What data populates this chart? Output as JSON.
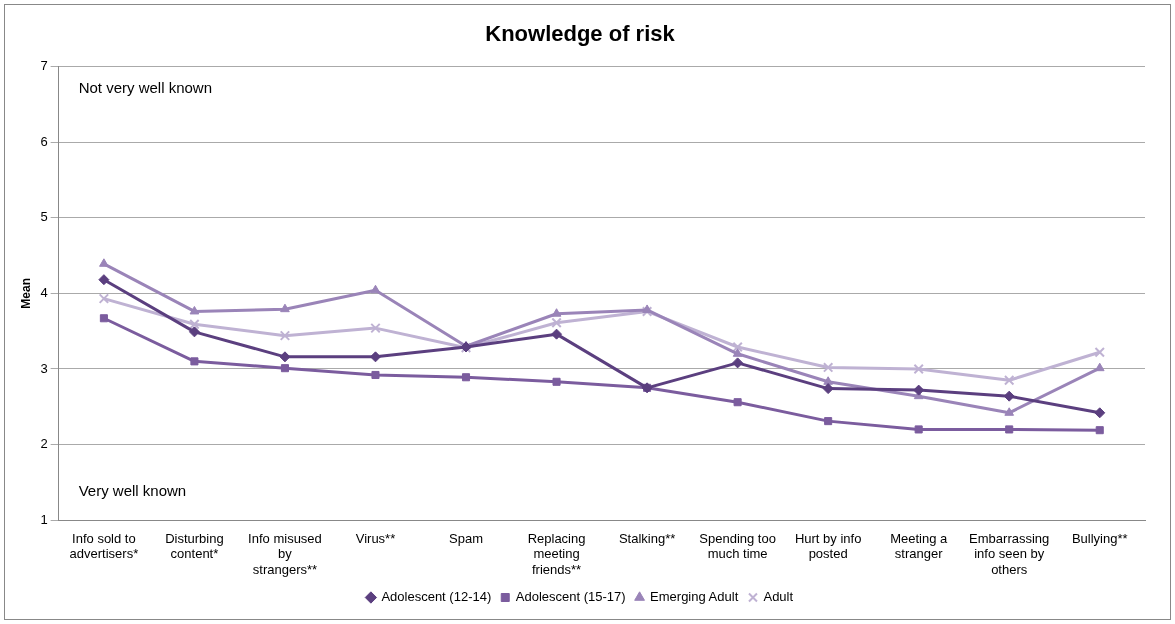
{
  "chart_data": {
    "type": "line",
    "title": "Knowledge of risk",
    "ylabel": "Mean",
    "categories": [
      "Info sold to advertisers*",
      "Disturbing content*",
      "Info misused by strangers**",
      "Virus**",
      "Spam",
      "Replacing meeting friends**",
      "Stalking**",
      "Spending too much time",
      "Hurt by info posted",
      "Meeting a stranger",
      "Embarrassing info seen by others",
      "Bullying**"
    ],
    "series": [
      {
        "name": "Adolescent (12-14)",
        "color": "#5b3f7f",
        "marker": "diamond",
        "values": [
          4.18,
          3.49,
          3.16,
          3.16,
          3.29,
          3.46,
          2.75,
          3.08,
          2.74,
          2.72,
          2.64,
          2.42
        ]
      },
      {
        "name": "Adolescent (15-17)",
        "color": "#7b5c9e",
        "marker": "square",
        "values": [
          3.67,
          3.1,
          3.01,
          2.92,
          2.89,
          2.83,
          2.75,
          2.56,
          2.31,
          2.2,
          2.2,
          2.19
        ]
      },
      {
        "name": "Emerging Adult",
        "color": "#9a84b8",
        "marker": "triangle",
        "values": [
          4.39,
          3.76,
          3.79,
          4.04,
          3.3,
          3.73,
          3.78,
          3.2,
          2.83,
          2.64,
          2.42,
          3.01
        ]
      },
      {
        "name": "Adult",
        "color": "#bfb2d3",
        "marker": "cross",
        "values": [
          3.93,
          3.59,
          3.44,
          3.54,
          3.28,
          3.61,
          3.76,
          3.29,
          3.02,
          3.0,
          2.85,
          3.22
        ]
      }
    ],
    "ylim": [
      1,
      7
    ],
    "yticks": [
      1,
      2,
      3,
      4,
      5,
      6,
      7
    ],
    "grid": "y",
    "legend": "bottom",
    "annotations": [
      "Not very well known",
      "Very well known"
    ]
  }
}
